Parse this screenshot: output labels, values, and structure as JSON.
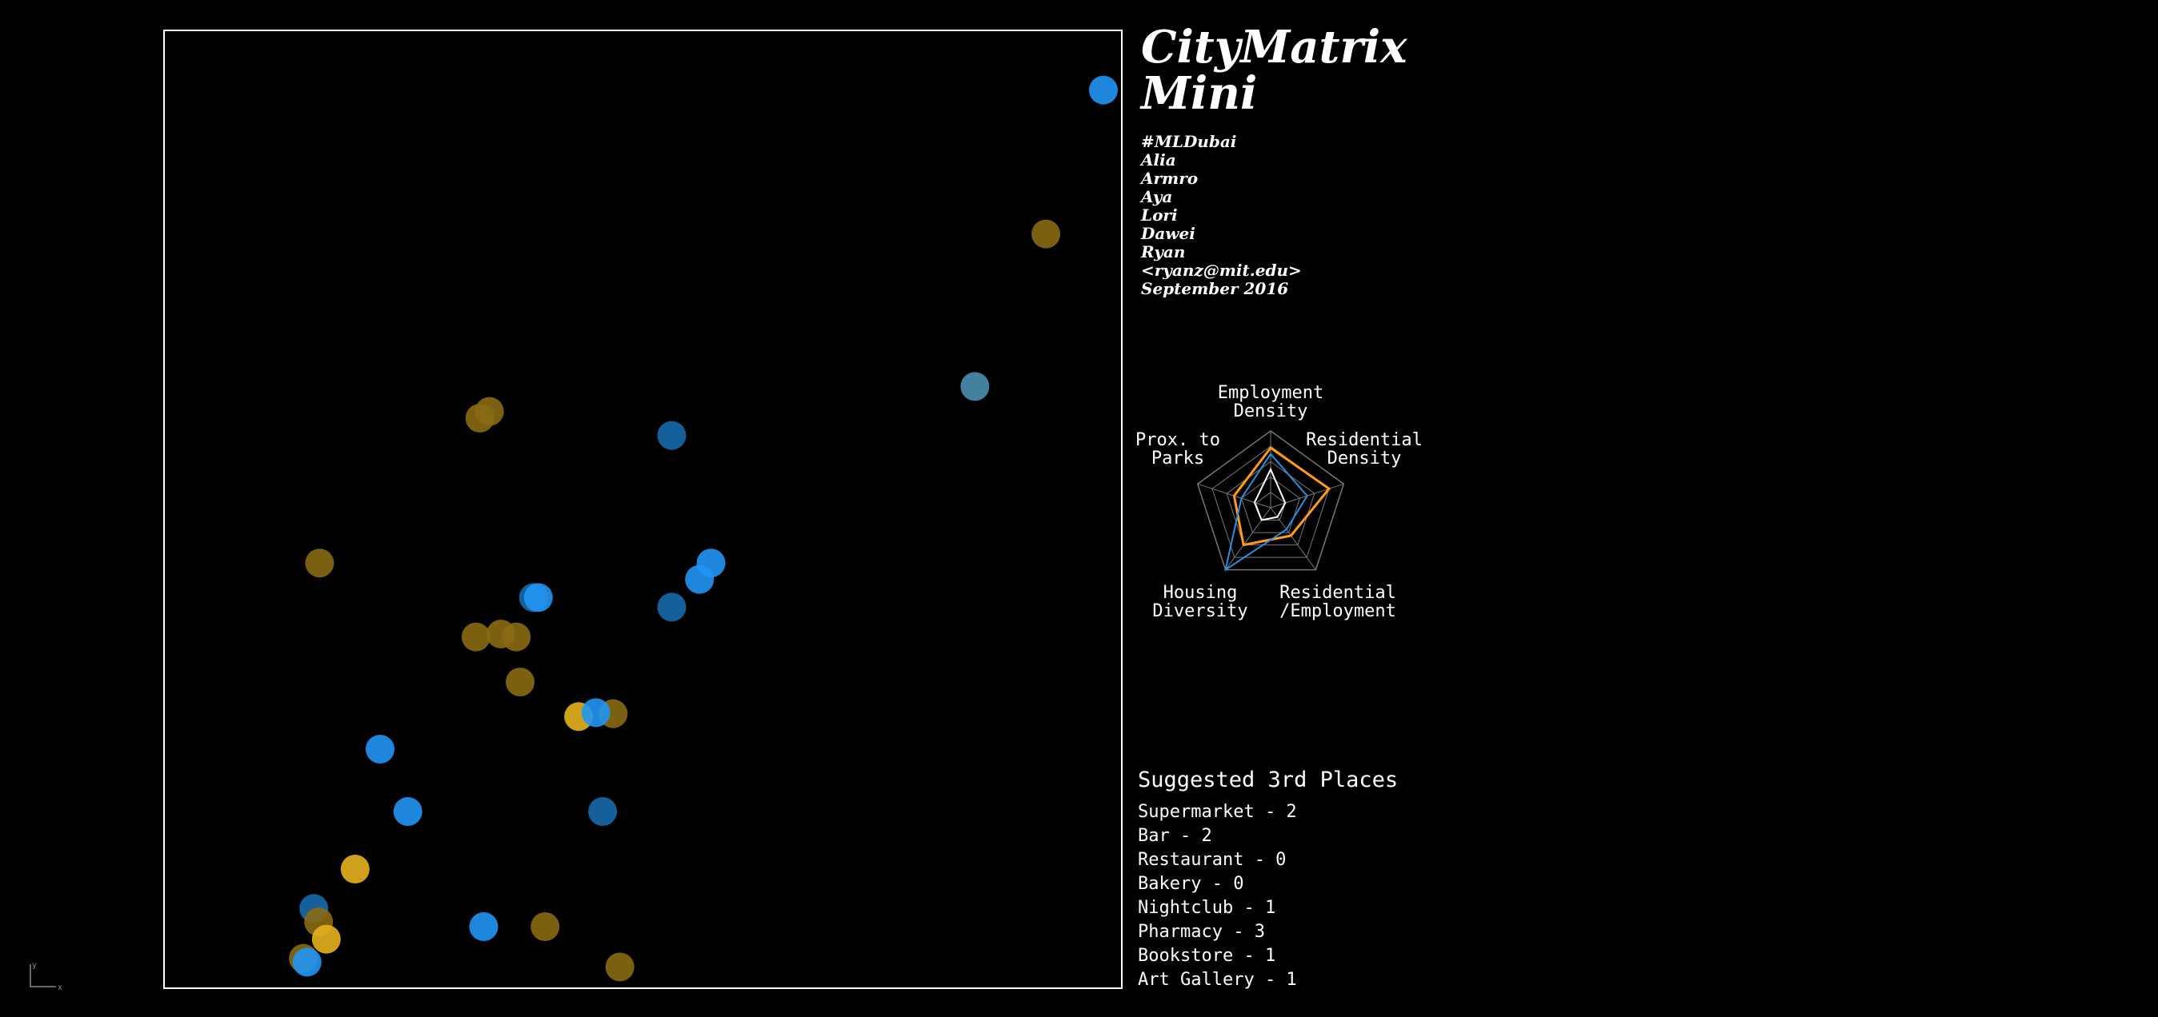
{
  "header": {
    "title_line1": "CityMatrix",
    "title_line2": "Mini",
    "credits": [
      "#MLDubai",
      "Alia",
      "Armro",
      "Aya",
      "Lori",
      "Dawei",
      "Ryan",
      "<ryanz@mit.edu>",
      "September 2016"
    ]
  },
  "colors": {
    "background": "#000000",
    "blue": "#2196f3",
    "dark_blue": "#1769ab",
    "steel_blue": "#4a8fb0",
    "gold": "#e6b31e",
    "dark_gold": "#8a6a14",
    "radar_orange": "#ff9a1a",
    "radar_blue": "#2a8fe0"
  },
  "scatter": {
    "points": [
      {
        "x": 0.98,
        "y": 0.937,
        "c": "blue"
      },
      {
        "x": 0.92,
        "y": 0.787,
        "c": "dark_gold"
      },
      {
        "x": 0.846,
        "y": 0.628,
        "c": "steel_blue"
      },
      {
        "x": 0.53,
        "y": 0.577,
        "c": "dark_blue"
      },
      {
        "x": 0.34,
        "y": 0.602,
        "c": "dark_gold"
      },
      {
        "x": 0.33,
        "y": 0.595,
        "c": "dark_gold"
      },
      {
        "x": 0.163,
        "y": 0.444,
        "c": "dark_gold"
      },
      {
        "x": 0.571,
        "y": 0.444,
        "c": "blue"
      },
      {
        "x": 0.559,
        "y": 0.427,
        "c": "blue"
      },
      {
        "x": 0.386,
        "y": 0.408,
        "c": "dark_blue"
      },
      {
        "x": 0.391,
        "y": 0.408,
        "c": "blue"
      },
      {
        "x": 0.53,
        "y": 0.398,
        "c": "dark_blue"
      },
      {
        "x": 0.326,
        "y": 0.367,
        "c": "dark_gold"
      },
      {
        "x": 0.352,
        "y": 0.37,
        "c": "dark_gold"
      },
      {
        "x": 0.368,
        "y": 0.367,
        "c": "dark_gold"
      },
      {
        "x": 0.372,
        "y": 0.32,
        "c": "dark_gold"
      },
      {
        "x": 0.433,
        "y": 0.284,
        "c": "gold"
      },
      {
        "x": 0.469,
        "y": 0.287,
        "c": "dark_gold"
      },
      {
        "x": 0.451,
        "y": 0.288,
        "c": "blue"
      },
      {
        "x": 0.226,
        "y": 0.25,
        "c": "blue"
      },
      {
        "x": 0.255,
        "y": 0.185,
        "c": "blue"
      },
      {
        "x": 0.458,
        "y": 0.185,
        "c": "dark_blue"
      },
      {
        "x": 0.2,
        "y": 0.125,
        "c": "gold"
      },
      {
        "x": 0.157,
        "y": 0.084,
        "c": "dark_blue"
      },
      {
        "x": 0.162,
        "y": 0.07,
        "c": "dark_gold"
      },
      {
        "x": 0.17,
        "y": 0.052,
        "c": "gold"
      },
      {
        "x": 0.334,
        "y": 0.065,
        "c": "blue"
      },
      {
        "x": 0.398,
        "y": 0.065,
        "c": "dark_gold"
      },
      {
        "x": 0.146,
        "y": 0.032,
        "c": "dark_gold"
      },
      {
        "x": 0.15,
        "y": 0.028,
        "c": "blue"
      },
      {
        "x": 0.476,
        "y": 0.023,
        "c": "dark_gold"
      }
    ]
  },
  "radar": {
    "axes": [
      {
        "lines": [
          "Employment",
          "Density"
        ]
      },
      {
        "lines": [
          "Residential",
          "Density"
        ]
      },
      {
        "lines": [
          "Residential",
          "/Employment"
        ]
      },
      {
        "lines": [
          "Housing",
          "Diversity"
        ]
      },
      {
        "lines": [
          "Prox. to",
          "Parks"
        ]
      }
    ],
    "series": [
      {
        "color": "radar_orange",
        "values": [
          0.78,
          0.8,
          0.45,
          0.6,
          0.5
        ]
      },
      {
        "color": "radar_blue",
        "values": [
          0.7,
          0.5,
          0.35,
          1.0,
          0.4
        ]
      },
      {
        "color": "white",
        "values": [
          0.5,
          0.2,
          0.15,
          0.2,
          0.22
        ]
      }
    ]
  },
  "places": {
    "title": "Suggested 3rd Places",
    "items": [
      "Supermarket - 2",
      "Bar - 2",
      "Restaurant - 0",
      "Bakery - 0",
      "Nightclub - 1",
      "Pharmacy - 3",
      "Bookstore - 1",
      "Art Gallery - 1"
    ]
  },
  "axis_widget": {
    "y": "y",
    "x": "x"
  }
}
